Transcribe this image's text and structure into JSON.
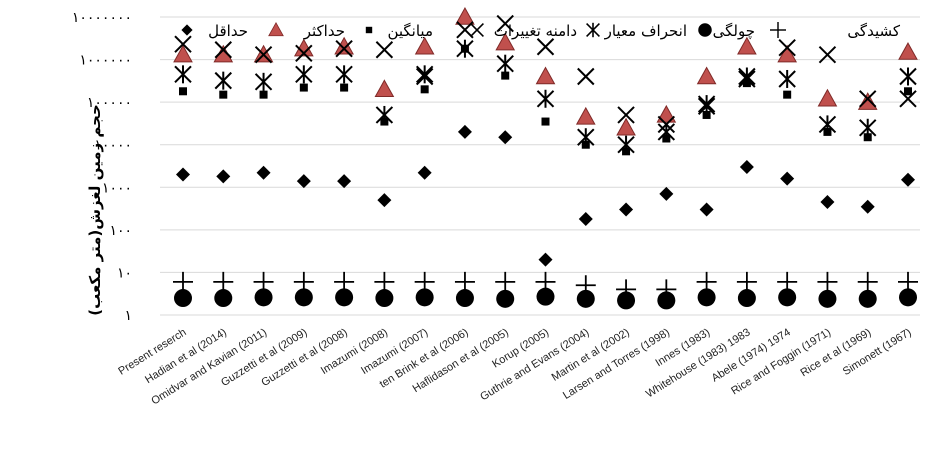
{
  "chart_data": {
    "type": "scatter",
    "title": "",
    "ylabel": "حجم زمین لغزش(متر مکعب)",
    "xlabel": "",
    "y_scale": "log",
    "ylim": [
      1,
      10000000
    ],
    "y_tick_labels": [
      "۱۰۰۰۰۰۰۰",
      "۱۰۰۰۰۰۰",
      "۱۰۰۰۰۰",
      "۱۰۰۰۰",
      "۱۰۰۰",
      "۱۰۰",
      "۱۰",
      "۱"
    ],
    "y_tick_values": [
      10000000,
      1000000,
      100000,
      10000,
      1000,
      100,
      10,
      1
    ],
    "grid": "horizontal",
    "legend_position": "top",
    "categories": [
      "Present reserch",
      "Hadian et al (2014)",
      "Omidvar and Kavian (2011)",
      "Guzzetti et al (2009)",
      "Guzzetti et al (2008)",
      "Imazumi (2008)",
      "Imazumi (2007)",
      "ten Brink et al (2006)",
      "Haflidason et al (2005)",
      "Korup (2005)",
      "Guthrie and Evans (2004)",
      "Martin et al (2002)",
      "Larsen and Torres (1998)",
      "Innes (1983)",
      "Whitehouse (1983) 1983",
      "Abele (1974) 1974",
      "Rice and Foggin (1971)",
      "Rice et al (1969)",
      "Simonett (1967)"
    ],
    "series": [
      {
        "name": "حداقل",
        "marker": "diamond",
        "color": "#000000",
        "values": [
          2000,
          1800,
          2200,
          1400,
          1400,
          500,
          2200,
          20000,
          15000,
          20,
          180,
          300,
          700,
          300,
          3000,
          1600,
          450,
          350,
          1500
        ]
      },
      {
        "name": "حداکثر",
        "marker": "triangle",
        "color": "#c0504d",
        "values": [
          1300000,
          1300000,
          1300000,
          1800000,
          2000000,
          200000,
          2000000,
          10000000,
          2500000,
          400000,
          45000,
          25000,
          50000,
          400000,
          2000000,
          1300000,
          120000,
          100000,
          1500000
        ]
      },
      {
        "name": "میانگین",
        "marker": "square",
        "color": "#000000",
        "values": [
          180000,
          150000,
          150000,
          220000,
          220000,
          35000,
          200000,
          1800000,
          420000,
          35000,
          10000,
          7000,
          14000,
          50000,
          280000,
          150000,
          20000,
          15000,
          180000
        ]
      },
      {
        "name": "دامنه تغییرات",
        "marker": "x",
        "color": "#000000",
        "values": [
          2300000,
          1700000,
          1300000,
          1400000,
          1800000,
          1700000,
          400000,
          5000000,
          7000000,
          2000000,
          400000,
          50000,
          30000,
          80000,
          350000,
          1900000,
          1300000,
          120000,
          120000
        ]
      },
      {
        "name": "انحراف معیار",
        "marker": "asterisk",
        "color": "#000000",
        "values": [
          450000,
          320000,
          300000,
          450000,
          450000,
          50000,
          450000,
          1800000,
          800000,
          120000,
          15000,
          10000,
          20000,
          90000,
          400000,
          350000,
          30000,
          25000,
          400000
        ]
      },
      {
        "name": "چولگی",
        "marker": "circle",
        "color": "#000000",
        "values": [
          2.5,
          2.5,
          2.6,
          2.6,
          2.6,
          2.5,
          2.6,
          2.5,
          2.4,
          2.7,
          2.4,
          2.2,
          2.2,
          2.6,
          2.5,
          2.6,
          2.4,
          2.4,
          2.6
        ]
      },
      {
        "name": "کشیدگی",
        "marker": "plus",
        "color": "#000000",
        "values": [
          6,
          6,
          6,
          6,
          6,
          6,
          6,
          6,
          6,
          6,
          5,
          4,
          4,
          6,
          6,
          6,
          6,
          6,
          6
        ]
      }
    ]
  },
  "legend_order": [
    0,
    1,
    2,
    3,
    4,
    5,
    6
  ]
}
